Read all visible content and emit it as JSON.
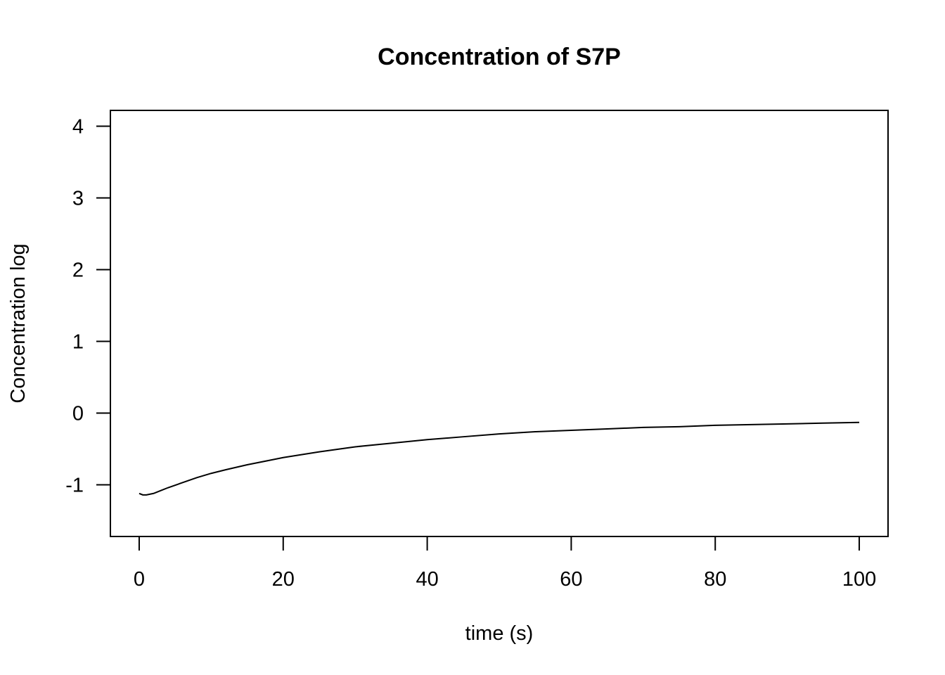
{
  "chart_data": {
    "type": "line",
    "title": "Concentration of S7P",
    "xlabel": "time (s)",
    "ylabel": "Concentration log",
    "xlim": [
      -4,
      104
    ],
    "ylim": [
      -1.72,
      4.22
    ],
    "xticks": [
      0,
      20,
      40,
      60,
      80,
      100
    ],
    "yticks": [
      -1,
      0,
      1,
      2,
      3,
      4
    ],
    "grid": false,
    "series": [
      {
        "color": "#000000",
        "x": [
          0,
          0.5,
          1,
          2,
          3,
          4,
          6,
          8,
          10,
          12,
          15,
          18,
          20,
          25,
          30,
          35,
          40,
          45,
          50,
          55,
          60,
          65,
          70,
          75,
          80,
          85,
          90,
          95,
          100
        ],
        "y": [
          -1.12,
          -1.14,
          -1.14,
          -1.12,
          -1.08,
          -1.04,
          -0.97,
          -0.9,
          -0.84,
          -0.79,
          -0.72,
          -0.66,
          -0.62,
          -0.54,
          -0.47,
          -0.42,
          -0.37,
          -0.33,
          -0.29,
          -0.26,
          -0.24,
          -0.22,
          -0.2,
          -0.19,
          -0.17,
          -0.16,
          -0.15,
          -0.14,
          -0.13
        ]
      }
    ]
  }
}
